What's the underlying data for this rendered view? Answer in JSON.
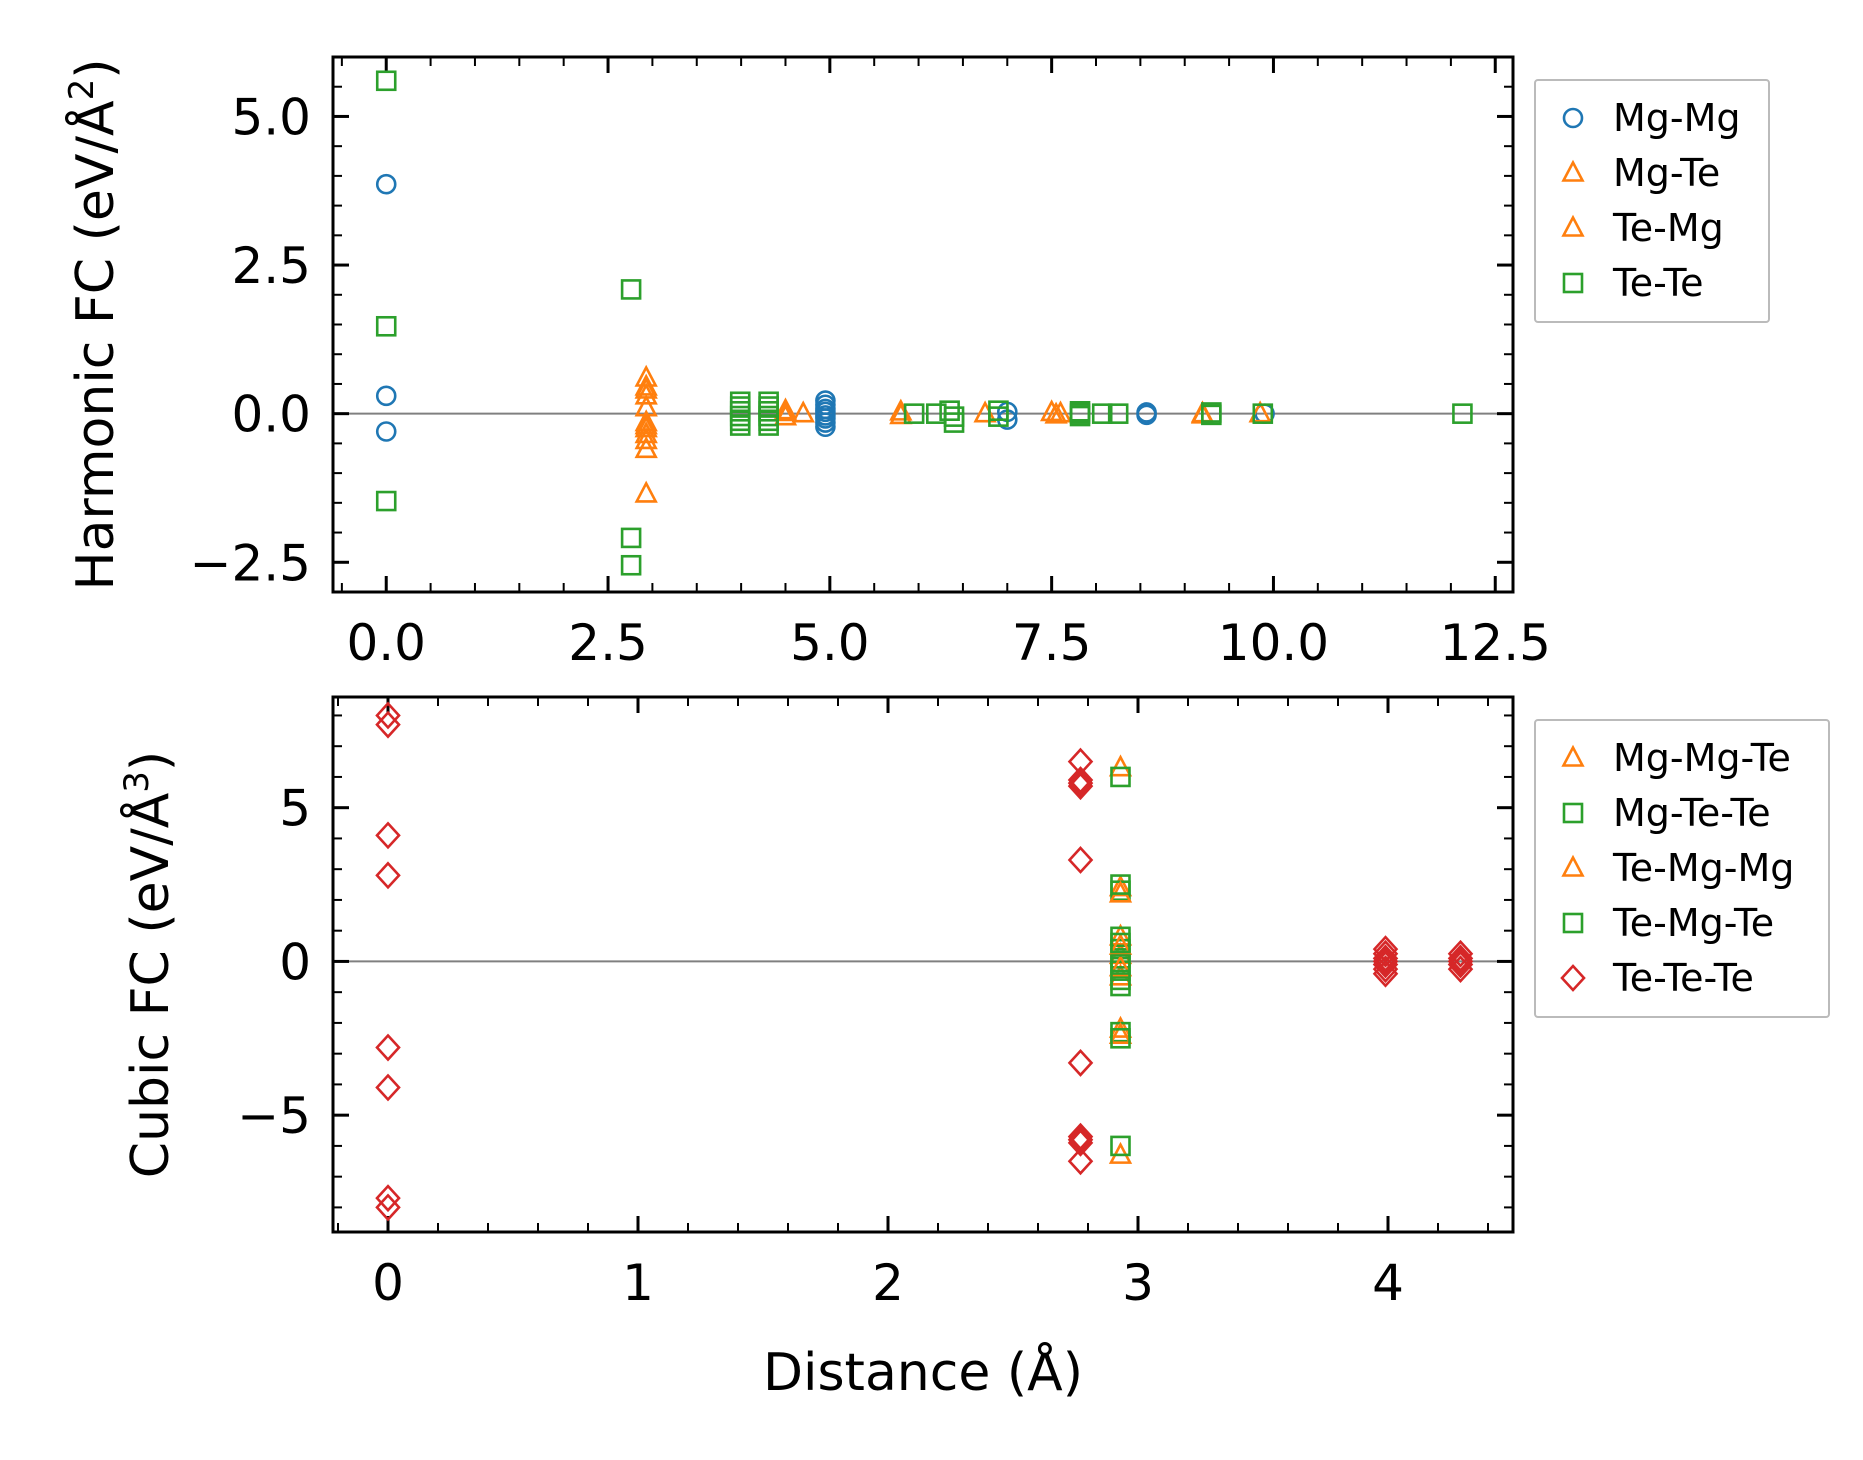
{
  "chart_data": [
    {
      "type": "scatter",
      "ylabel_main": "Harmonic FC (eV/Å",
      "ylabel_sup": "2",
      "ylabel_close": ")",
      "xlim": [
        -0.6,
        12.7
      ],
      "ylim": [
        -3.0,
        6.0
      ],
      "xticks": [
        0.0,
        2.5,
        5.0,
        7.5,
        10.0,
        12.5
      ],
      "xtick_labels": [
        "0.0",
        "2.5",
        "5.0",
        "7.5",
        "10.0",
        "12.5"
      ],
      "yticks": [
        -2.5,
        0.0,
        2.5,
        5.0
      ],
      "ytick_labels": [
        "−2.5",
        "0.0",
        "2.5",
        "5.0"
      ],
      "x_minor_step": 0.5,
      "y_minor_step": 0.5,
      "zero_line": true,
      "legend": [
        "Mg-Mg",
        "Mg-Te",
        "Te-Mg",
        "Te-Te"
      ],
      "series": [
        {
          "name": "Mg-Mg",
          "marker": "circle",
          "color": "#1f77b4",
          "x": [
            0,
            0,
            0,
            4.95,
            4.95,
            4.95,
            4.95,
            4.95,
            4.95,
            4.95,
            4.95,
            7.0,
            7.0,
            8.57,
            8.57,
            9.9
          ],
          "y": [
            3.86,
            0.3,
            -0.3,
            0.22,
            0.15,
            0.08,
            0.03,
            -0.03,
            -0.08,
            -0.15,
            -0.22,
            0.03,
            -0.1,
            0.02,
            -0.02,
            0.0
          ]
        },
        {
          "name": "Mg-Te",
          "marker": "triangle",
          "color": "#ff7f0e",
          "x": [
            2.93,
            2.93,
            2.93,
            2.93,
            2.93,
            2.93,
            2.93,
            2.93,
            2.93,
            2.93,
            4.5,
            4.5,
            4.7,
            5.8,
            5.8,
            6.75,
            7.5,
            7.6,
            9.2,
            9.2,
            9.85
          ],
          "y": [
            0.6,
            0.45,
            0.4,
            0.1,
            -0.15,
            -0.25,
            -0.35,
            -0.45,
            -0.6,
            -1.35,
            0.05,
            -0.05,
            0.0,
            0.03,
            -0.03,
            0.0,
            0.02,
            0.0,
            0.0,
            -0.02,
            0.0
          ]
        },
        {
          "name": "Te-Mg",
          "marker": "triangle",
          "color": "#ff7f0e",
          "x": [
            2.93,
            2.93,
            4.5,
            7.55
          ],
          "y": [
            0.3,
            -0.2,
            0.02,
            -0.02
          ]
        },
        {
          "name": "Te-Te",
          "marker": "square",
          "color": "#2ca02c",
          "x": [
            0,
            0,
            0,
            2.76,
            2.76,
            2.76,
            3.99,
            3.99,
            3.99,
            3.99,
            3.99,
            3.99,
            4.31,
            4.31,
            4.31,
            4.31,
            4.31,
            4.31,
            5.95,
            6.2,
            6.35,
            6.4,
            6.4,
            6.9,
            6.9,
            7.82,
            7.82,
            7.82,
            8.07,
            8.25,
            9.3,
            9.3,
            9.88,
            12.13
          ],
          "y": [
            5.6,
            1.47,
            -1.47,
            2.09,
            -2.09,
            -2.55,
            0.2,
            0.12,
            0.04,
            -0.04,
            -0.12,
            -0.2,
            0.2,
            0.12,
            0.04,
            -0.04,
            -0.12,
            -0.2,
            0.0,
            0.0,
            0.05,
            -0.05,
            -0.15,
            0.05,
            -0.05,
            0.04,
            0.0,
            -0.04,
            0.0,
            0.0,
            0.02,
            -0.02,
            0.0,
            0.0
          ]
        }
      ]
    },
    {
      "type": "scatter",
      "xlabel": "Distance (Å)",
      "ylabel_main": "Cubic FC (eV/Å",
      "ylabel_sup": "3",
      "ylabel_close": ")",
      "xlim": [
        -0.22,
        4.5
      ],
      "ylim": [
        -8.8,
        8.6
      ],
      "xticks": [
        0,
        1,
        2,
        3,
        4
      ],
      "xtick_labels": [
        "0",
        "1",
        "2",
        "3",
        "4"
      ],
      "yticks": [
        -5,
        0,
        5
      ],
      "ytick_labels": [
        "−5",
        "0",
        "5"
      ],
      "x_minor_step": 0.2,
      "y_minor_step": 1,
      "zero_line": true,
      "legend": [
        "Mg-Mg-Te",
        "Mg-Te-Te",
        "Te-Mg-Mg",
        "Te-Mg-Te",
        "Te-Te-Te"
      ],
      "series": [
        {
          "name": "Mg-Mg-Te",
          "marker": "triangle",
          "color": "#ff7f0e",
          "x": [
            2.93,
            2.93,
            2.93,
            2.93,
            2.93,
            2.93,
            2.93
          ],
          "y": [
            6.3,
            2.4,
            0.8,
            0.2,
            -0.5,
            -2.2,
            -6.3
          ]
        },
        {
          "name": "Mg-Te-Te",
          "marker": "square",
          "color": "#2ca02c",
          "x": [
            2.93,
            2.93,
            2.93,
            2.93,
            2.93,
            2.93,
            2.93,
            2.93,
            2.93
          ],
          "y": [
            6.0,
            2.3,
            0.8,
            0.4,
            0.1,
            -0.3,
            -0.8,
            -2.3,
            -6.0
          ]
        },
        {
          "name": "Te-Mg-Mg",
          "marker": "triangle",
          "color": "#ff7f0e",
          "x": [
            2.93,
            2.93,
            2.93,
            2.93
          ],
          "y": [
            2.2,
            0.5,
            -0.2,
            -2.4
          ]
        },
        {
          "name": "Te-Mg-Te",
          "marker": "square",
          "color": "#2ca02c",
          "x": [
            2.93,
            2.93,
            2.93,
            2.93,
            2.93
          ],
          "y": [
            2.5,
            0.6,
            -0.1,
            -0.6,
            -2.5
          ]
        },
        {
          "name": "Te-Te-Te",
          "marker": "diamond",
          "color": "#d62728",
          "x": [
            0,
            0,
            0,
            0,
            0,
            0,
            0,
            0,
            2.77,
            2.77,
            2.77,
            2.77,
            2.77,
            2.77,
            2.77,
            2.77,
            2.77,
            2.77,
            3.99,
            3.99,
            3.99,
            3.99,
            3.99,
            3.99,
            3.99,
            4.29,
            4.29,
            4.29,
            4.29,
            4.29
          ],
          "y": [
            8.0,
            7.7,
            4.1,
            2.8,
            -2.8,
            -4.1,
            -7.7,
            -8.0,
            6.5,
            5.9,
            5.7,
            3.3,
            -3.3,
            -5.7,
            -5.9,
            -6.5,
            5.8,
            -5.8,
            0.4,
            0.25,
            0.1,
            0.0,
            -0.1,
            -0.25,
            -0.4,
            0.25,
            0.1,
            0.0,
            -0.1,
            -0.25
          ]
        }
      ]
    }
  ]
}
